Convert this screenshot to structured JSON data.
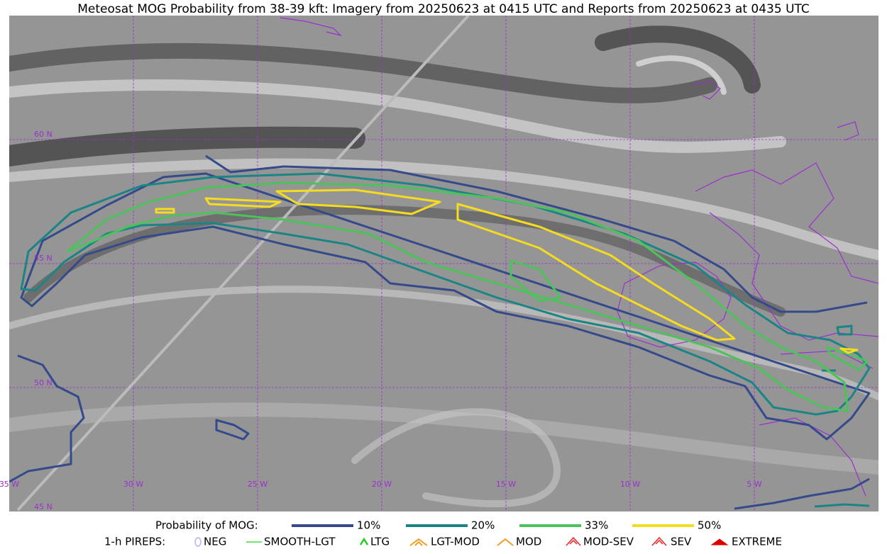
{
  "title": "Meteosat MOG Probability from 38-39 kft: Imagery from 20250623 at 0415 UTC and Reports from 20250623 at 0435 UTC",
  "graticule": {
    "lat_labels": [
      "60 N",
      "55 N",
      "50 N",
      "45 N"
    ],
    "lon_labels": [
      "35 W",
      "30 W",
      "25 W",
      "20 W",
      "15 W",
      "10 W",
      "5 W"
    ]
  },
  "legend": {
    "probability": {
      "label": "Probability of MOG:",
      "items": [
        {
          "label": "10%",
          "color": "#344a8a"
        },
        {
          "label": "20%",
          "color": "#1b8585"
        },
        {
          "label": "33%",
          "color": "#4cc25a"
        },
        {
          "label": "50%",
          "color": "#f5dc1e"
        }
      ]
    },
    "pireps": {
      "label": "1-h PIREPS:",
      "items": [
        {
          "label": "NEG",
          "color": "#b8b0ee"
        },
        {
          "label": "SMOOTH-LGT",
          "color": "#44dd44"
        },
        {
          "label": "LTG",
          "color": "#22cc22"
        },
        {
          "label": "LGT-MOD",
          "color": "#f0a020"
        },
        {
          "label": "MOD",
          "color": "#f0a020"
        },
        {
          "label": "MOD-SEV",
          "color": "#ee2222"
        },
        {
          "label": "SEV",
          "color": "#ee2222"
        },
        {
          "label": "EXTREME",
          "color": "#dd0000"
        }
      ]
    }
  }
}
